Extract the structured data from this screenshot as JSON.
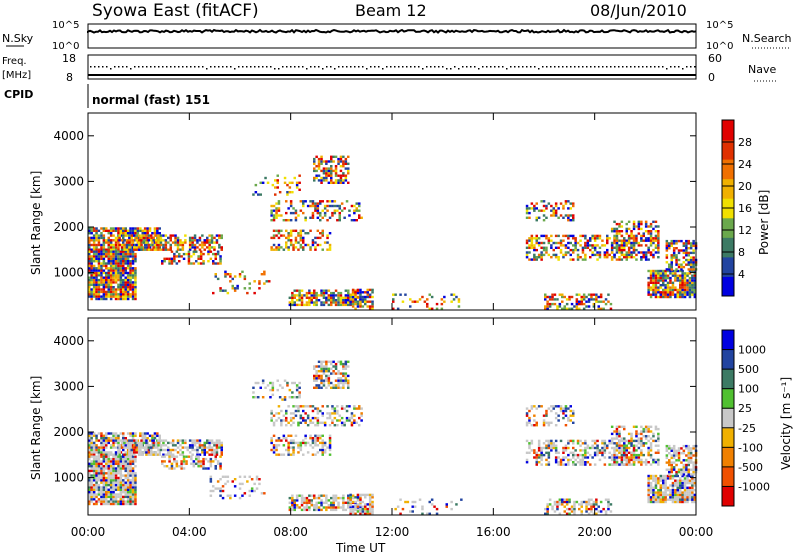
{
  "header": {
    "station": "Syowa East (fitACF)",
    "beam": "Beam 12",
    "date": "08/Jun/2010"
  },
  "status_panels": {
    "nsky_label": "N.Sky",
    "nsky_ticks": [
      "10^5",
      "10^0"
    ],
    "nsearch_label": "N.Search",
    "nsearch_ticks": [
      "10^5",
      "10^0"
    ],
    "freq_label": "Freq.",
    "freq_unit": "[MHz]",
    "freq_ticks": [
      "18",
      "8"
    ],
    "nave_label": "Nave",
    "nave_ticks": [
      "60",
      "0"
    ],
    "cpid_label": "CPID",
    "cpid_value": "normal (fast) 151"
  },
  "colors": {
    "power_scale": [
      "#0000e0",
      "#2244a0",
      "#3c7a64",
      "#6aa84c",
      "#f0e000",
      "#f0b000",
      "#f07000",
      "#e03000",
      "#e00000"
    ],
    "velocity_scale": [
      "#e00000",
      "#f05000",
      "#f08000",
      "#f0b000",
      "#c8c8c8",
      "#50c030",
      "#3c7a64",
      "#2244a0",
      "#0000e0"
    ]
  },
  "chart_data": [
    {
      "type": "heatmap",
      "panel": "power",
      "ylabel": "Slant Range [km]",
      "yticks": [
        "4000",
        "3000",
        "2000",
        "1000"
      ],
      "ylim": [
        180,
        4500
      ],
      "xlim": [
        0,
        24
      ],
      "colorbar_label": "Power [dB]",
      "colorbar_ticks": [
        "28",
        "24",
        "20",
        "16",
        "12",
        "8",
        "4"
      ],
      "colorbar_range": [
        0,
        32
      ]
    },
    {
      "type": "heatmap",
      "panel": "velocity",
      "ylabel": "Slant Range [km]",
      "yticks": [
        "4000",
        "3000",
        "2000",
        "1000"
      ],
      "ylim": [
        180,
        4500
      ],
      "xlim": [
        0,
        24
      ],
      "colorbar_label": "Velocity [m s⁻¹]",
      "colorbar_ticks": [
        "1000",
        "500",
        "100",
        "25",
        "-25",
        "-100",
        "-500",
        "-1000"
      ]
    }
  ],
  "xaxis": {
    "ticks": [
      "00:00",
      "04:00",
      "08:00",
      "12:00",
      "16:00",
      "20:00",
      "00:00"
    ],
    "label": "Time UT"
  }
}
